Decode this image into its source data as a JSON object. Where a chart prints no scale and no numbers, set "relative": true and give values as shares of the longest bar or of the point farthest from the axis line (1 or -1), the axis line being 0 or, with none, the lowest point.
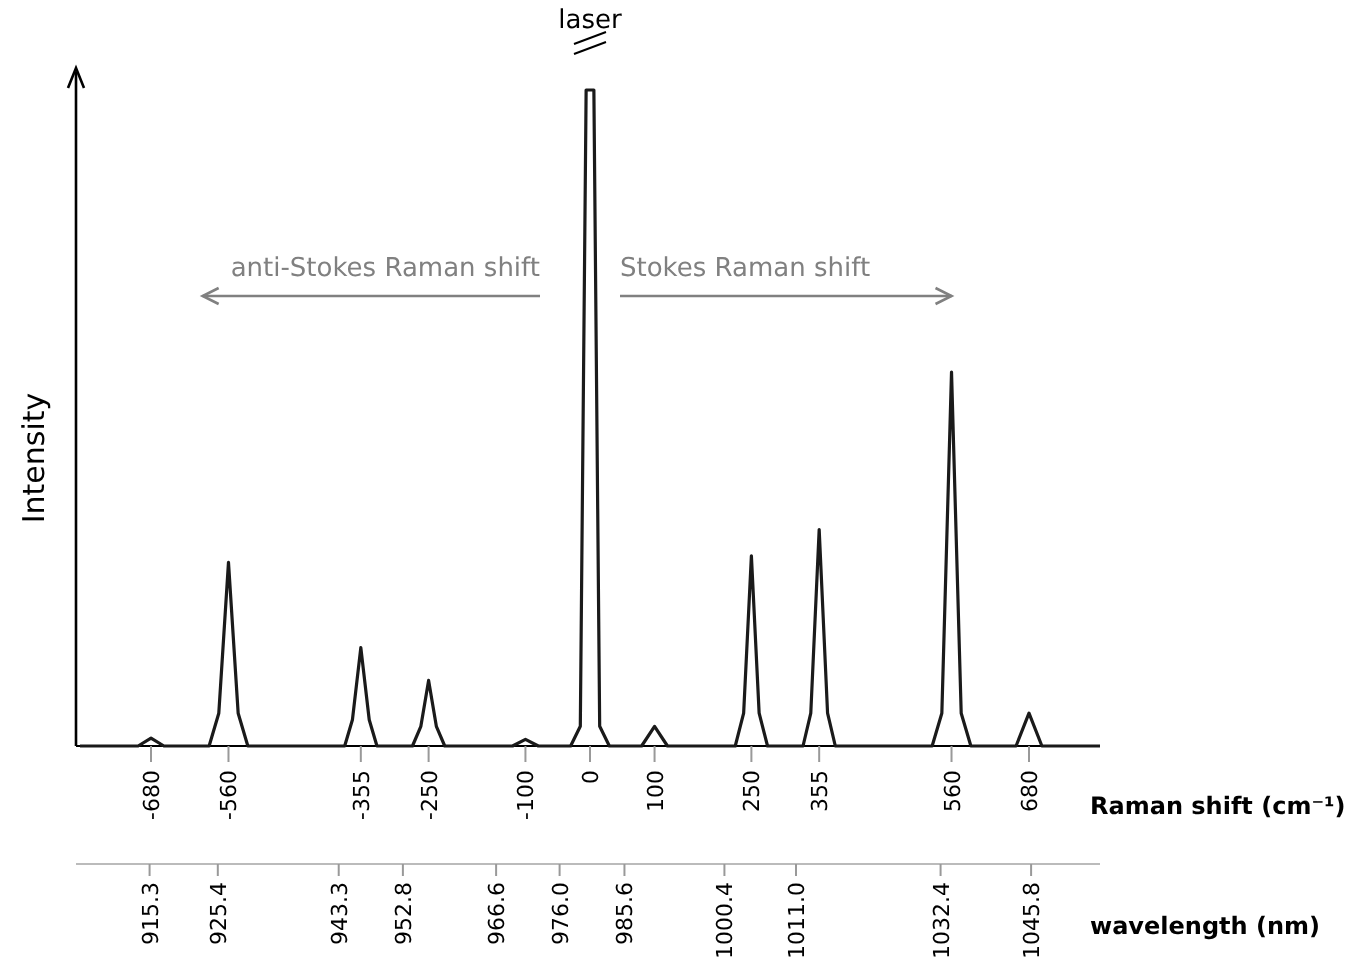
{
  "chart_data": {
    "type": "line",
    "relative": true,
    "ylabel": "Intensity",
    "xlabel": "Raman shift (cm⁻¹)",
    "x2label": "wavelength (nm)",
    "annotations": [
      "laser",
      "anti-Stokes Raman shift",
      "Stokes Raman shift"
    ],
    "xlim": [
      -790,
      790
    ],
    "xticks": [
      -680,
      -560,
      -355,
      -250,
      -100,
      0,
      100,
      250,
      355,
      560,
      680
    ],
    "x2lim": [
      905,
      1056
    ],
    "x2ticks": [
      915.3,
      925.4,
      943.3,
      952.8,
      966.6,
      {
        "value": 976,
        "label": "976.0"
      },
      985.6,
      1000.4,
      {
        "value": 1011,
        "label": "1011.0"
      },
      1032.4,
      1045.8
    ],
    "x": [
      -790,
      -700,
      -680,
      -660,
      -590,
      -575,
      -560,
      -545,
      -530,
      -380,
      -368,
      -355,
      -342,
      -330,
      -275,
      -262,
      -250,
      -238,
      -225,
      -120,
      -100,
      -80,
      -30,
      -15,
      -6,
      6,
      15,
      30,
      80,
      100,
      120,
      225,
      238,
      250,
      262,
      275,
      330,
      342,
      355,
      368,
      380,
      530,
      545,
      560,
      575,
      590,
      660,
      680,
      700,
      790
    ],
    "values": [
      0,
      0,
      0.012,
      0,
      0,
      0.05,
      0.28,
      0.05,
      0,
      0,
      0.04,
      0.15,
      0.04,
      0,
      0,
      0.03,
      0.1,
      0.03,
      0,
      0,
      0.01,
      0,
      0,
      0.03,
      1,
      1,
      0.03,
      0,
      0,
      0.03,
      0,
      0,
      0.05,
      0.29,
      0.05,
      0,
      0,
      0.05,
      0.33,
      0.05,
      0,
      0,
      0.05,
      0.57,
      0.05,
      0,
      0,
      0.05,
      0,
      0
    ],
    "color": "#1a1a1a"
  }
}
